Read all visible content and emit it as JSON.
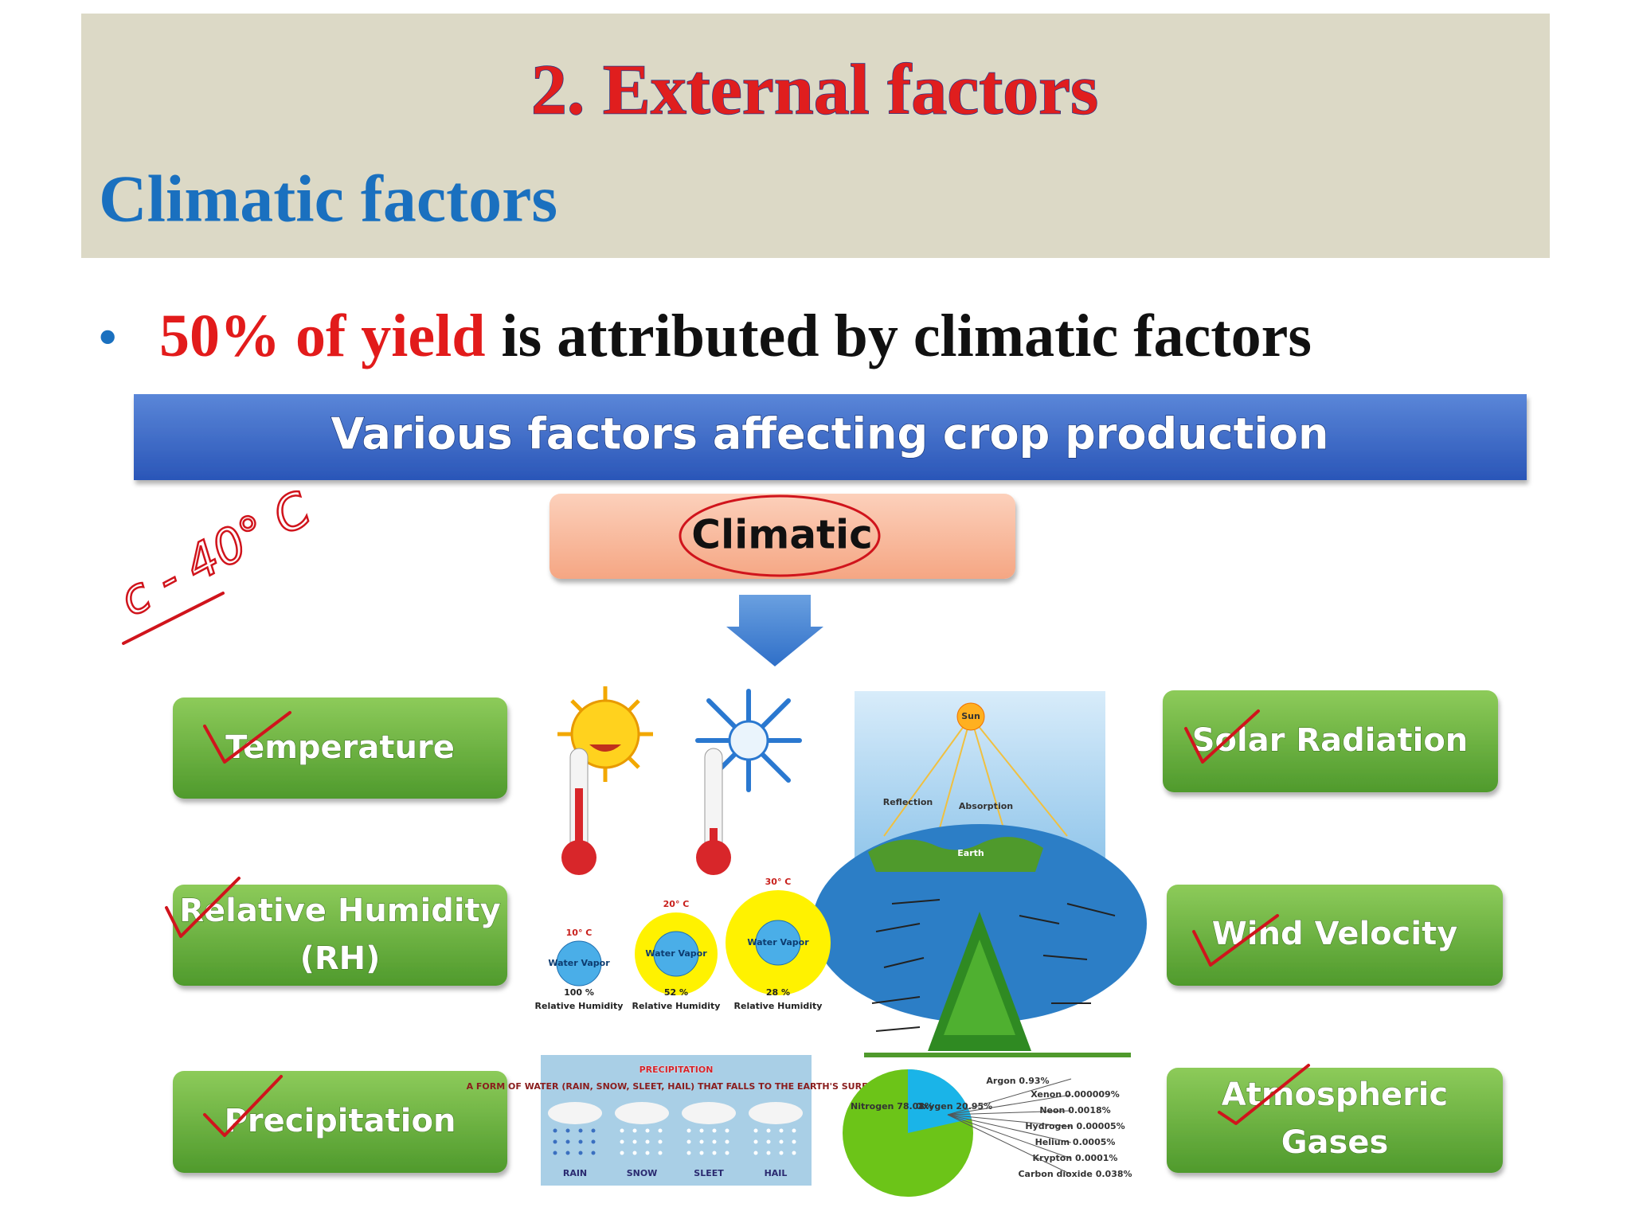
{
  "header": {
    "title": "2. External factors",
    "subtitle": "Climatic factors"
  },
  "bullet": {
    "highlight": "50% of yield",
    "text": "is attributed by climatic factors"
  },
  "diagram": {
    "banner": "Various factors affecting crop production",
    "center": "Climatic",
    "handwritten_note": "c - 40° C",
    "factors": {
      "temperature": "Temperature",
      "relative_humidity": [
        "Relative Humidity",
        "(RH)"
      ],
      "precipitation": "Precipitation",
      "solar_radiation": "Solar Radiation",
      "wind_velocity": "Wind Velocity",
      "atmospheric_gases": [
        "Atmospheric",
        "Gases"
      ]
    },
    "solar_figure": {
      "sun": "Sun",
      "reflection": "Reflection",
      "absorption": "Absorption",
      "earth": "Earth"
    },
    "humidity_figure": [
      {
        "temp": "10° C",
        "label": "Water Vapor",
        "rh": "100 %",
        "caption": "Relative Humidity"
      },
      {
        "temp": "20° C",
        "label": "Water Vapor",
        "rh": "52 %",
        "caption": "Relative Humidity"
      },
      {
        "temp": "30° C",
        "label": "Water Vapor",
        "rh": "28 %",
        "caption": "Relative Humidity"
      }
    ],
    "precipitation_figure": {
      "title": "PRECIPITATION",
      "subtitle": "A FORM OF WATER (RAIN, SNOW, SLEET, HAIL) THAT FALLS TO THE EARTH'S SURFACE",
      "labels": [
        "RAIN",
        "SNOW",
        "SLEET",
        "HAIL"
      ]
    },
    "gases_figure": {
      "major": [
        "Nitrogen 78.08%",
        "Oxygen 20.95%"
      ],
      "minor": [
        "Argon 0.93%",
        "Xenon 0.000009%",
        "Neon 0.0018%",
        "Hydrogen 0.00005%",
        "Helium 0.0005%",
        "Krypton 0.0001%",
        "Carbon dioxide 0.038%"
      ]
    }
  }
}
